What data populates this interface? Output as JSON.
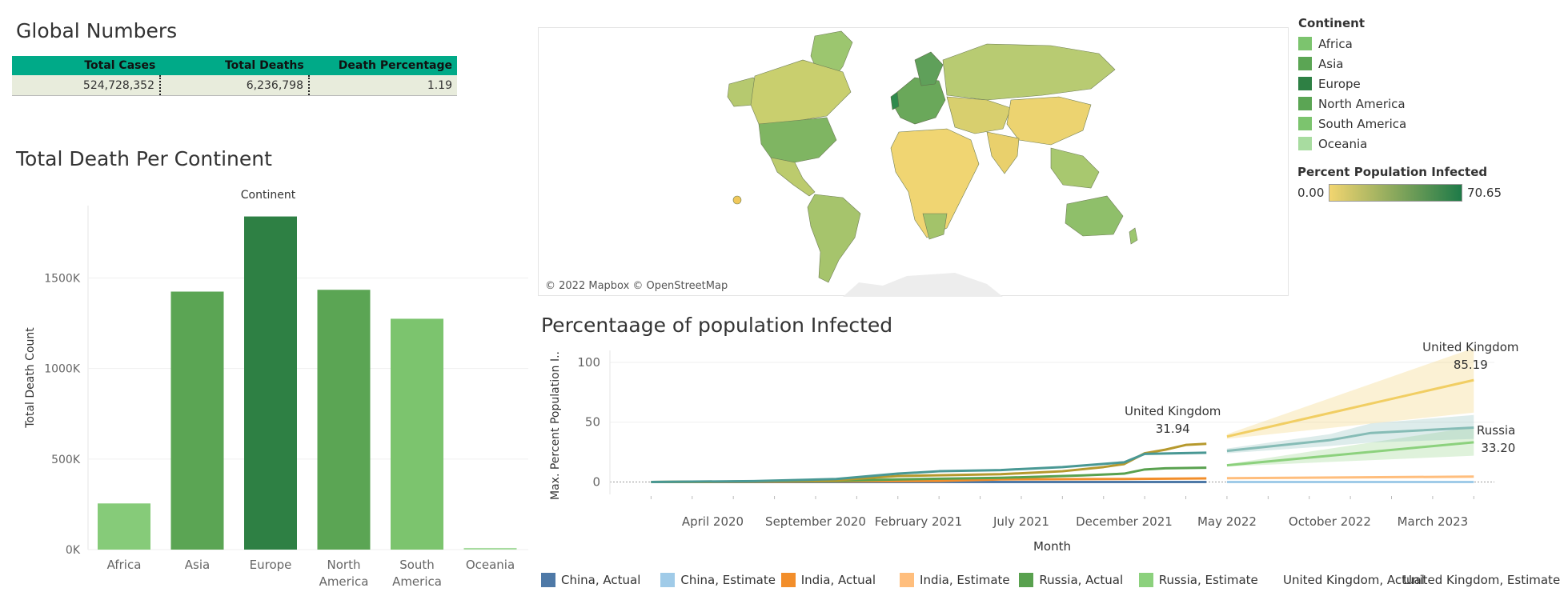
{
  "global": {
    "title": "Global Numbers",
    "columns": [
      "Total Cases",
      "Total Deaths",
      "Death Percentage"
    ],
    "values": [
      "524,728,352",
      "6,236,798",
      "1.19"
    ]
  },
  "map": {
    "credit": "© 2022 Mapbox © OpenStreetMap"
  },
  "continent_legend": {
    "title": "Continent",
    "items": [
      {
        "label": "Africa",
        "color": "#7cc46e"
      },
      {
        "label": "Asia",
        "color": "#5ba554"
      },
      {
        "label": "Europe",
        "color": "#2e8044"
      },
      {
        "label": "North America",
        "color": "#5ba554"
      },
      {
        "label": "South America",
        "color": "#7cc46e"
      },
      {
        "label": "Oceania",
        "color": "#a8dca0"
      }
    ]
  },
  "infected_legend": {
    "title": "Percent Population Infected",
    "min": "0.00",
    "max": "70.65",
    "color_low": "#f2d570",
    "color_high": "#1e7a48"
  },
  "chart_data": [
    {
      "type": "bar",
      "title": "Total Death Per Continent",
      "header": "Continent",
      "ylabel": "Total Death Count",
      "categories": [
        "Africa",
        "Asia",
        "Europe",
        "North\nAmerica",
        "South\nAmerica",
        "Oceania"
      ],
      "values": [
        255000,
        1425000,
        1840000,
        1435000,
        1275000,
        9000
      ],
      "colors": [
        "#86cb79",
        "#5ba554",
        "#2e8044",
        "#5ba554",
        "#7cc46e",
        "#a8dca0"
      ],
      "yticks": [
        0,
        500000,
        1000000,
        1500000
      ],
      "ytick_labels": [
        "0K",
        "500K",
        "1000K",
        "1500K"
      ],
      "ylim": [
        0,
        1900000
      ]
    },
    {
      "type": "line",
      "title": "Percentaage of population Infected",
      "xlabel": "Month",
      "ylabel": "Max. Percent Population I..",
      "ylim": [
        -5,
        110
      ],
      "yticks": [
        0,
        50,
        100
      ],
      "xticks": [
        "2020-04",
        "2020-09",
        "2021-02",
        "2021-07",
        "2021-12",
        "2022-05",
        "2022-10",
        "2023-03"
      ],
      "xtick_labels": [
        "April 2020",
        "September 2020",
        "February 2021",
        "July 2021",
        "December 2021",
        "May 2022",
        "October 2022",
        "March 2023"
      ],
      "xlim": [
        "2019-11",
        "2023-06"
      ],
      "series": [
        {
          "name": "China, Actual",
          "color": "#4e79a7",
          "width": 3,
          "x": [
            "2020-01",
            "2020-06",
            "2021-01",
            "2021-06",
            "2021-12",
            "2022-04"
          ],
          "y": [
            0,
            0,
            0,
            0,
            0,
            0
          ]
        },
        {
          "name": "China, Estimate",
          "color": "#a0cbe8",
          "width": 3,
          "x": [
            "2022-05",
            "2023-05"
          ],
          "y": [
            0,
            0
          ]
        },
        {
          "name": "India, Actual",
          "color": "#f28e2b",
          "width": 3,
          "x": [
            "2020-01",
            "2020-06",
            "2020-10",
            "2021-03",
            "2021-06",
            "2021-12",
            "2022-04"
          ],
          "y": [
            0,
            0.3,
            0.6,
            0.9,
            2.2,
            2.5,
            3.0
          ]
        },
        {
          "name": "India, Estimate",
          "color": "#ffbe7d",
          "width": 3,
          "x": [
            "2022-05",
            "2023-05"
          ],
          "y": [
            3.2,
            4.5
          ]
        },
        {
          "name": "Russia, Actual",
          "color": "#59a14f",
          "width": 3,
          "x": [
            "2020-01",
            "2020-06",
            "2020-10",
            "2021-01",
            "2021-06",
            "2021-10",
            "2021-12",
            "2022-01",
            "2022-02",
            "2022-04"
          ],
          "y": [
            0,
            0.5,
            1.0,
            2.2,
            3.5,
            5.5,
            7.0,
            10.5,
            11.5,
            12.0
          ]
        },
        {
          "name": "Russia, Estimate",
          "color": "#8cd17d",
          "width": 3,
          "x": [
            "2022-05",
            "2023-05"
          ],
          "y": [
            14.0,
            33.2
          ],
          "band_low": [
            13.0,
            22.0
          ],
          "band_high": [
            15.0,
            46.0
          ]
        },
        {
          "name": "United Kingdom, Actual",
          "color": "#b6992d",
          "width": 3,
          "x": [
            "2020-01",
            "2020-06",
            "2020-10",
            "2021-01",
            "2021-06",
            "2021-09",
            "2021-11",
            "2021-12",
            "2022-01",
            "2022-02",
            "2022-03",
            "2022-04"
          ],
          "y": [
            0,
            0.5,
            1.5,
            5.0,
            6.5,
            9.0,
            12.5,
            15.0,
            24.0,
            27.0,
            31.0,
            31.94
          ]
        },
        {
          "name": "United Kingdom, Estimate",
          "color": "#f1ce63",
          "width": 3,
          "x": [
            "2022-05",
            "2023-05"
          ],
          "y": [
            38.0,
            85.19
          ],
          "band_low": [
            36.0,
            58.0
          ],
          "band_high": [
            40.0,
            112.0
          ]
        },
        {
          "name": "",
          "color": "#499894",
          "width": 3,
          "x": [
            "2020-01",
            "2020-06",
            "2020-10",
            "2021-01",
            "2021-03",
            "2021-06",
            "2021-09",
            "2021-12",
            "2022-01",
            "2022-04"
          ],
          "y": [
            0,
            0.8,
            2.5,
            7.0,
            9.0,
            10.0,
            12.5,
            16.5,
            23.5,
            24.5
          ]
        },
        {
          "name": "",
          "color": "#86bcb6",
          "width": 3,
          "x": [
            "2022-05",
            "2022-10",
            "2022-12",
            "2023-05"
          ],
          "y": [
            26.0,
            35.0,
            41.0,
            45.5
          ],
          "band_low": [
            24.0,
            30.0,
            33.0,
            36.0
          ],
          "band_high": [
            28.0,
            40.0,
            49.0,
            56.0
          ]
        }
      ],
      "annotations": [
        {
          "name": "United Kingdom",
          "value": "31.94",
          "x": "2022-04",
          "y": 31.94
        },
        {
          "name": "United Kingdom",
          "value": "85.19",
          "x": "2023-05",
          "y": 85.19
        },
        {
          "name": "Russia",
          "value": "33.20",
          "x": "2023-05",
          "y": 33.2
        }
      ]
    }
  ]
}
